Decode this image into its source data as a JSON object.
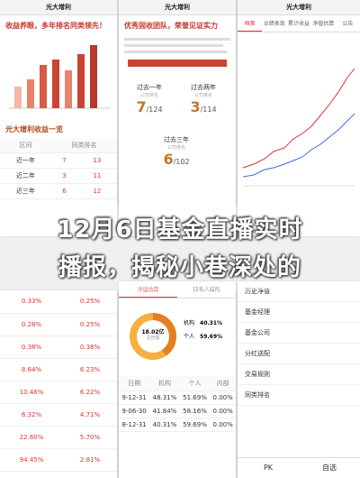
{
  "title_lines": [
    "12月6日基金直播实时",
    "播报，揭秘小巷深处的"
  ],
  "left_top": {
    "header": "光大增利",
    "headline": "收益养眼，多年排名同类领先！",
    "table_title": "光大增利收益一览",
    "columns": [
      "区间",
      "同类排名"
    ],
    "rows": [
      [
        "近一年",
        "7",
        "13"
      ],
      [
        "近二年",
        "3",
        "11"
      ],
      [
        "近三年",
        "6",
        "12"
      ]
    ]
  },
  "middle_top": {
    "header": "光大增利",
    "headline": "优秀固收团队，荣誉见证实力",
    "ranks": [
      {
        "label": "过去一年",
        "note": "公司排名",
        "rank": "7",
        "total": "/124"
      },
      {
        "label": "过去两年",
        "note": "公司排名",
        "rank": "3",
        "total": "/114"
      },
      {
        "label": "过去三年",
        "note": "公司排名",
        "rank": "6",
        "total": "/102"
      }
    ]
  },
  "right_top": {
    "header": "光大增利",
    "tabs": [
      "档案",
      "业绩表现",
      "累计收益",
      "净值估算",
      "公告"
    ]
  },
  "left_bottom": {
    "rows": [
      [
        "0.33%",
        "0.25%"
      ],
      [
        "0.28%",
        "0.25%"
      ],
      [
        "0.38%",
        "0.38%"
      ],
      [
        "8.64%",
        "6.23%"
      ],
      [
        "10.46%",
        "6.22%"
      ],
      [
        "6.32%",
        "4.71%"
      ],
      [
        "22.60%",
        "5.70%"
      ],
      [
        "94.45%",
        "2.81%"
      ]
    ]
  },
  "middle_bottom": {
    "tabs": [
      "净值估算",
      "持有人结构"
    ],
    "donut_value": "18.02亿",
    "donut_label": "总份额",
    "legend": [
      [
        "机构",
        "40.31%"
      ],
      [
        "个人",
        "59.69%"
      ]
    ],
    "columns": [
      "日期",
      "机构",
      "个人",
      "内部"
    ],
    "rows": [
      [
        "9-12-31",
        "48.31%",
        "51.69%",
        "0.00%"
      ],
      [
        "9-06-30",
        "41.84%",
        "58.16%",
        "0.00%"
      ],
      [
        "8-12-31",
        "40.31%",
        "59.69%",
        "0.00%"
      ]
    ]
  },
  "right_bottom": {
    "items": [
      "历史净值",
      "基金经理",
      "基金公司",
      "分红送配",
      "交易规则",
      "同类排名"
    ],
    "actions": [
      "PK",
      "自选"
    ]
  }
}
